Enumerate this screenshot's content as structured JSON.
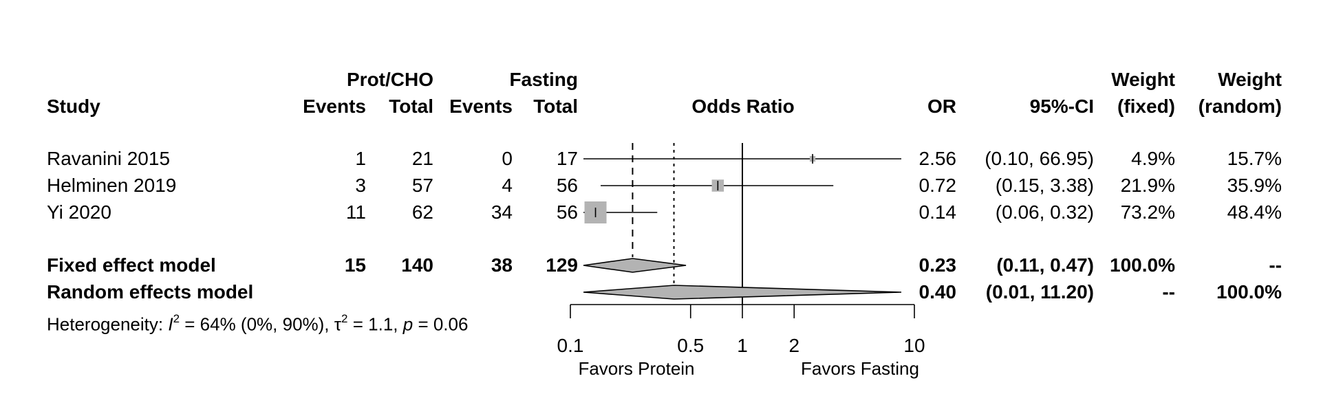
{
  "headers": {
    "study": "Study",
    "group1": "Prot/CHO",
    "group2": "Fasting",
    "events": "Events",
    "total": "Total",
    "plot": "Odds Ratio",
    "or": "OR",
    "ci": "95%-CI",
    "weight": "Weight",
    "fixed": "(fixed)",
    "random": "(random)"
  },
  "studies": [
    {
      "name": "Ravanini 2015",
      "e1": "1",
      "n1": "21",
      "e2": "0",
      "n2": "17",
      "or": "2.56",
      "ci": "(0.10, 66.95)",
      "wf": "4.9%",
      "wr": "15.7%"
    },
    {
      "name": "Helminen 2019",
      "e1": "3",
      "n1": "57",
      "e2": "4",
      "n2": "56",
      "or": "0.72",
      "ci": "(0.15,  3.38)",
      "wf": "21.9%",
      "wr": "35.9%"
    },
    {
      "name": "Yi 2020",
      "e1": "11",
      "n1": "62",
      "e2": "34",
      "n2": "56",
      "or": "0.14",
      "ci": "(0.06,  0.32)",
      "wf": "73.2%",
      "wr": "48.4%"
    }
  ],
  "fixed": {
    "name": "Fixed effect model",
    "e1": "15",
    "n1": "140",
    "e2": "38",
    "n2": "129",
    "or": "0.23",
    "ci": "(0.11,  0.47)",
    "wf": "100.0%",
    "wr": "--"
  },
  "random": {
    "name": "Random effects model",
    "or": "0.40",
    "ci": "(0.01, 11.20)",
    "wf": "--",
    "wr": "100.0%"
  },
  "heterogeneity": {
    "prefix": "Heterogeneity: ",
    "i_sym": "I",
    "sq": "2",
    "i_val": " = 64% (0%, 90%), ",
    "tau_sym": "τ",
    "tau_val": " = 1.1, ",
    "p_sym": "p",
    "p_val": " = 0.06"
  },
  "axis_labels": {
    "left": "Favors Protein",
    "right": "Favors Fasting"
  },
  "chart_data": {
    "type": "forest",
    "scale": "log",
    "xlim": [
      0.06,
      14
    ],
    "ticks": [
      0.1,
      0.5,
      1,
      2,
      10
    ],
    "tick_labels": [
      "0.1",
      "0.5",
      "1",
      "2",
      "10"
    ],
    "reference_line": 1,
    "fixed_line": 0.23,
    "random_line": 0.4,
    "studies": [
      {
        "or": 2.56,
        "lower": 0.1,
        "upper": 66.95,
        "weight_fixed": 4.9
      },
      {
        "or": 0.72,
        "lower": 0.15,
        "upper": 3.38,
        "weight_fixed": 21.9
      },
      {
        "or": 0.14,
        "lower": 0.06,
        "upper": 0.32,
        "weight_fixed": 73.2
      }
    ],
    "fixed_diamond": {
      "or": 0.23,
      "lower": 0.11,
      "upper": 0.47
    },
    "random_diamond": {
      "or": 0.4,
      "lower": 0.01,
      "upper": 11.2
    },
    "colors": {
      "box": "#b3b3b3",
      "diamond": "#b3b3b3",
      "line": "#000000"
    }
  }
}
